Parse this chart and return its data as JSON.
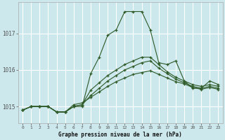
{
  "title": "Graphe pression niveau de la mer (hPa)",
  "background_color": "#cce8ed",
  "grid_color": "#ffffff",
  "line_color": "#2d5a27",
  "x_ticks": [
    0,
    1,
    2,
    3,
    4,
    5,
    6,
    7,
    8,
    9,
    10,
    11,
    12,
    13,
    14,
    15,
    16,
    17,
    18,
    19,
    20,
    21,
    22,
    23
  ],
  "y_ticks": [
    1015,
    1016,
    1017
  ],
  "ylim": [
    1014.55,
    1017.85
  ],
  "xlim": [
    -0.5,
    23.5
  ],
  "series": [
    [
      1014.9,
      1015.0,
      1015.0,
      1015.0,
      1014.85,
      1014.85,
      1015.0,
      1015.0,
      1015.9,
      1016.35,
      1016.95,
      1017.1,
      1017.6,
      1017.6,
      1017.6,
      1017.1,
      1016.2,
      1016.15,
      1016.25,
      1015.7,
      1015.5,
      1015.5,
      1015.7,
      1015.6
    ],
    [
      1014.9,
      1015.0,
      1015.0,
      1015.0,
      1014.85,
      1014.85,
      1015.0,
      1015.05,
      1015.45,
      1015.65,
      1015.85,
      1016.0,
      1016.15,
      1016.25,
      1016.35,
      1016.35,
      1016.15,
      1015.95,
      1015.8,
      1015.7,
      1015.6,
      1015.55,
      1015.6,
      1015.55
    ],
    [
      1014.9,
      1015.0,
      1015.0,
      1015.0,
      1014.85,
      1014.85,
      1015.0,
      1015.05,
      1015.3,
      1015.5,
      1015.7,
      1015.85,
      1016.0,
      1016.1,
      1016.2,
      1016.25,
      1016.05,
      1015.9,
      1015.75,
      1015.65,
      1015.55,
      1015.5,
      1015.55,
      1015.5
    ],
    [
      1014.9,
      1015.0,
      1015.0,
      1015.0,
      1014.85,
      1014.85,
      1015.05,
      1015.1,
      1015.25,
      1015.4,
      1015.55,
      1015.68,
      1015.78,
      1015.88,
      1015.93,
      1015.98,
      1015.88,
      1015.78,
      1015.68,
      1015.62,
      1015.52,
      1015.47,
      1015.52,
      1015.47
    ]
  ],
  "figsize": [
    3.2,
    2.0
  ],
  "dpi": 100
}
